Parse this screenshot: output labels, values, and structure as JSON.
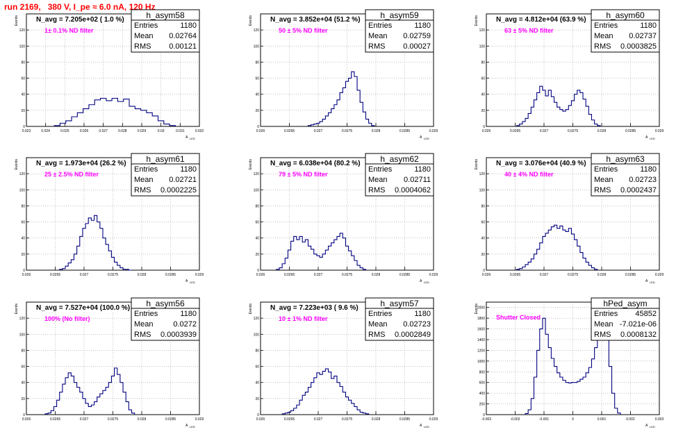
{
  "title": "run 2169,   380 V, I_pe ≈ 6.0 nA, 120 Hz",
  "stat_labels": {
    "entries": "Entries",
    "mean": "Mean",
    "rms": "RMS"
  },
  "y_axis_label": "Events",
  "x_axis_label": "A",
  "x_axis_sub": "LED",
  "colors": {
    "histogram": "#000080",
    "magenta": "#ff00ff",
    "grid": "#999999"
  },
  "chart_data": [
    {
      "type": "bar",
      "name": "h_asym58",
      "n_avg": "N_avg = 7.205e+02 ( 1.0 %)",
      "filter": "1± 0.1% ND filter",
      "entries": "1180",
      "mean": "0.02764",
      "rms": "0.00121",
      "xlim": [
        0.023,
        0.032
      ],
      "ylim": [
        0,
        140
      ],
      "xticks": [
        "0.023",
        "0.024",
        "0.025",
        "0.026",
        "0.027",
        "0.028",
        "0.029",
        "0.03",
        "0.031",
        "0.032"
      ],
      "xtick_values": [
        0.023,
        0.024,
        0.025,
        0.026,
        0.027,
        0.028,
        0.029,
        0.03,
        0.031,
        0.032
      ],
      "yticks": [
        "0",
        "20",
        "40",
        "60",
        "80",
        "100",
        "120"
      ],
      "ytick_values": [
        0,
        20,
        40,
        60,
        80,
        100,
        120
      ],
      "x": [
        0.0246,
        0.0249,
        0.0252,
        0.0255,
        0.0258,
        0.0261,
        0.0264,
        0.0267,
        0.027,
        0.0273,
        0.0276,
        0.0279,
        0.0282,
        0.0285,
        0.0288,
        0.0291,
        0.0294,
        0.0297,
        0.03,
        0.0303,
        0.0306
      ],
      "values": [
        1,
        4,
        7,
        12,
        17,
        22,
        27,
        33,
        35,
        32,
        35,
        31,
        34,
        25,
        22,
        20,
        17,
        13,
        7,
        3,
        1
      ]
    },
    {
      "type": "bar",
      "name": "h_asym59",
      "n_avg": "N_avg = 3.852e+04 (51.2 %)",
      "filter": "50 ± 5% ND filter",
      "entries": "1180",
      "mean": "0.02759",
      "rms": "0.00027",
      "xlim": [
        0.026,
        0.029
      ],
      "ylim": [
        0,
        140
      ],
      "xticks": [
        "0.026",
        "0.0265",
        "0.027",
        "0.0275",
        "0.028",
        "0.0285",
        "0.029"
      ],
      "xtick_values": [
        0.026,
        0.0265,
        0.027,
        0.0275,
        0.028,
        0.0285,
        0.029
      ],
      "yticks": [
        "0",
        "20",
        "40",
        "60",
        "80",
        "100",
        "120"
      ],
      "ytick_values": [
        0,
        20,
        40,
        60,
        80,
        100,
        120
      ],
      "x": [
        0.02685,
        0.0269,
        0.02695,
        0.027,
        0.02705,
        0.0271,
        0.02715,
        0.0272,
        0.02725,
        0.0273,
        0.02735,
        0.0274,
        0.02745,
        0.0275,
        0.02755,
        0.0276,
        0.02765,
        0.0277,
        0.02775,
        0.0278,
        0.02785,
        0.0279,
        0.02795
      ],
      "values": [
        1,
        2,
        3,
        4,
        6,
        9,
        13,
        17,
        22,
        27,
        33,
        42,
        48,
        56,
        60,
        68,
        62,
        45,
        30,
        18,
        9,
        4,
        1
      ]
    },
    {
      "type": "bar",
      "name": "h_asym60",
      "n_avg": "N_avg = 4.812e+04 (63.9 %)",
      "filter": "63 ± 5% ND filter",
      "entries": "1180",
      "mean": "0.02737",
      "rms": "0.0003825",
      "xlim": [
        0.026,
        0.029
      ],
      "ylim": [
        0,
        140
      ],
      "xticks": [
        "0.026",
        "0.0265",
        "0.027",
        "0.0275",
        "0.028",
        "0.0285",
        "0.029"
      ],
      "xtick_values": [
        0.026,
        0.0265,
        0.027,
        0.0275,
        0.028,
        0.0285,
        0.029
      ],
      "yticks": [
        "0",
        "20",
        "40",
        "60",
        "80",
        "100",
        "120"
      ],
      "ytick_values": [
        0,
        20,
        40,
        60,
        80,
        100,
        120
      ],
      "x": [
        0.02655,
        0.0266,
        0.02665,
        0.0267,
        0.02675,
        0.0268,
        0.02685,
        0.0269,
        0.02695,
        0.027,
        0.02705,
        0.0271,
        0.02715,
        0.0272,
        0.02725,
        0.0273,
        0.02735,
        0.0274,
        0.02745,
        0.0275,
        0.02755,
        0.0276,
        0.02765,
        0.0277,
        0.02775,
        0.0278,
        0.02785,
        0.0279,
        0.02795
      ],
      "values": [
        1,
        3,
        6,
        10,
        16,
        24,
        33,
        42,
        50,
        45,
        38,
        45,
        37,
        30,
        24,
        21,
        19,
        21,
        26,
        32,
        40,
        45,
        42,
        34,
        25,
        15,
        8,
        3,
        1
      ]
    },
    {
      "type": "bar",
      "name": "h_asym61",
      "n_avg": "N_avg = 1.973e+04 (26.2 %)",
      "filter": "25 ± 2.5% ND filter",
      "entries": "1180",
      "mean": "0.02721",
      "rms": "0.0002225",
      "xlim": [
        0.026,
        0.029
      ],
      "ylim": [
        0,
        140
      ],
      "xticks": [
        "0.026",
        "0.0265",
        "0.027",
        "0.0275",
        "0.028",
        "0.0285",
        "0.029"
      ],
      "xtick_values": [
        0.026,
        0.0265,
        0.027,
        0.0275,
        0.028,
        0.0285,
        0.029
      ],
      "yticks": [
        "0",
        "20",
        "40",
        "60",
        "80",
        "100",
        "120"
      ],
      "ytick_values": [
        0,
        20,
        40,
        60,
        80,
        100,
        120
      ],
      "x": [
        0.0266,
        0.02665,
        0.0267,
        0.02675,
        0.0268,
        0.02685,
        0.0269,
        0.02695,
        0.027,
        0.02705,
        0.0271,
        0.02715,
        0.0272,
        0.02725,
        0.0273,
        0.02735,
        0.0274,
        0.02745,
        0.0275,
        0.02755,
        0.0276,
        0.02765,
        0.0277,
        0.02775,
        0.0278
      ],
      "values": [
        1,
        2,
        5,
        9,
        13,
        20,
        30,
        42,
        52,
        58,
        65,
        62,
        68,
        60,
        52,
        40,
        32,
        24,
        16,
        10,
        6,
        3,
        1,
        1,
        0
      ]
    },
    {
      "type": "bar",
      "name": "h_asym62",
      "n_avg": "N_avg = 6.038e+04 (80.2 %)",
      "filter": "79 ± 5% ND filter",
      "entries": "1180",
      "mean": "0.02711",
      "rms": "0.0004062",
      "xlim": [
        0.026,
        0.029
      ],
      "ylim": [
        0,
        140
      ],
      "xticks": [
        "0.026",
        "0.0265",
        "0.027",
        "0.0275",
        "0.028",
        "0.0285",
        "0.029"
      ],
      "xtick_values": [
        0.026,
        0.0265,
        0.027,
        0.0275,
        0.028,
        0.0285,
        0.029
      ],
      "yticks": [
        "0",
        "20",
        "40",
        "60",
        "80",
        "100",
        "120"
      ],
      "ytick_values": [
        0,
        20,
        40,
        60,
        80,
        100,
        120
      ],
      "x": [
        0.0263,
        0.02635,
        0.0264,
        0.02645,
        0.0265,
        0.02655,
        0.0266,
        0.02665,
        0.0267,
        0.02675,
        0.0268,
        0.02685,
        0.0269,
        0.02695,
        0.027,
        0.02705,
        0.0271,
        0.02715,
        0.0272,
        0.02725,
        0.0273,
        0.02735,
        0.0274,
        0.02745,
        0.0275,
        0.02755,
        0.0276,
        0.02765,
        0.0277,
        0.02775,
        0.0278
      ],
      "values": [
        1,
        3,
        8,
        15,
        25,
        36,
        42,
        38,
        42,
        35,
        38,
        30,
        26,
        20,
        18,
        16,
        20,
        25,
        30,
        34,
        38,
        42,
        46,
        40,
        30,
        24,
        18,
        12,
        6,
        3,
        1
      ]
    },
    {
      "type": "bar",
      "name": "h_asym63",
      "n_avg": "N_avg = 3.076e+04 (40.9 %)",
      "filter": "40 ± 4% ND filter",
      "entries": "1180",
      "mean": "0.02723",
      "rms": "0.0002437",
      "xlim": [
        0.026,
        0.029
      ],
      "ylim": [
        0,
        140
      ],
      "xticks": [
        "0.026",
        "0.0265",
        "0.027",
        "0.0275",
        "0.028",
        "0.0285",
        "0.029"
      ],
      "xtick_values": [
        0.026,
        0.0265,
        0.027,
        0.0275,
        0.028,
        0.0285,
        0.029
      ],
      "yticks": [
        "0",
        "20",
        "40",
        "60",
        "80",
        "100",
        "120"
      ],
      "ytick_values": [
        0,
        20,
        40,
        60,
        80,
        100,
        120
      ],
      "x": [
        0.02655,
        0.0266,
        0.02665,
        0.0267,
        0.02675,
        0.0268,
        0.02685,
        0.0269,
        0.02695,
        0.027,
        0.02705,
        0.0271,
        0.02715,
        0.0272,
        0.02725,
        0.0273,
        0.02735,
        0.0274,
        0.02745,
        0.0275,
        0.02755,
        0.0276,
        0.02765,
        0.0277,
        0.02775,
        0.0278,
        0.02785,
        0.0279
      ],
      "values": [
        1,
        2,
        4,
        7,
        10,
        14,
        20,
        26,
        34,
        42,
        46,
        50,
        54,
        56,
        52,
        55,
        50,
        48,
        52,
        45,
        38,
        30,
        22,
        15,
        10,
        6,
        3,
        1
      ]
    },
    {
      "type": "bar",
      "name": "h_asym56",
      "n_avg": "N_avg = 7.527e+04 (100.0 %)",
      "filter": "100% (No filter)",
      "entries": "1180",
      "mean": "0.0272",
      "rms": "0.0003939",
      "xlim": [
        0.026,
        0.029
      ],
      "ylim": [
        0,
        140
      ],
      "xticks": [
        "0.026",
        "0.0265",
        "0.027",
        "0.0275",
        "0.028",
        "0.0285",
        "0.029"
      ],
      "xtick_values": [
        0.026,
        0.0265,
        0.027,
        0.0275,
        0.028,
        0.0285,
        0.029
      ],
      "yticks": [
        "0",
        "20",
        "40",
        "60",
        "80",
        "100",
        "120"
      ],
      "ytick_values": [
        0,
        20,
        40,
        60,
        80,
        100,
        120
      ],
      "x": [
        0.02635,
        0.0264,
        0.02645,
        0.0265,
        0.02655,
        0.0266,
        0.02665,
        0.0267,
        0.02675,
        0.0268,
        0.02685,
        0.0269,
        0.02695,
        0.027,
        0.02705,
        0.0271,
        0.02715,
        0.0272,
        0.02725,
        0.0273,
        0.02735,
        0.0274,
        0.02745,
        0.0275,
        0.02755,
        0.0276,
        0.02765,
        0.0277,
        0.02775,
        0.0278,
        0.02785
      ],
      "values": [
        1,
        2,
        5,
        10,
        18,
        28,
        38,
        46,
        52,
        48,
        40,
        34,
        28,
        20,
        14,
        10,
        12,
        16,
        22,
        26,
        30,
        34,
        40,
        48,
        58,
        50,
        40,
        28,
        16,
        6,
        2
      ]
    },
    {
      "type": "bar",
      "name": "h_asym57",
      "n_avg": "N_avg = 7.223e+03 ( 9.6 %)",
      "filter": "10 ± 1% ND filter",
      "entries": "1180",
      "mean": "0.02723",
      "rms": "0.0002849",
      "xlim": [
        0.026,
        0.029
      ],
      "ylim": [
        0,
        140
      ],
      "xticks": [
        "0.026",
        "0.0265",
        "0.027",
        "0.0275",
        "0.028",
        "0.0285",
        "0.029"
      ],
      "xtick_values": [
        0.026,
        0.0265,
        0.027,
        0.0275,
        0.028,
        0.0285,
        0.029
      ],
      "yticks": [
        "0",
        "20",
        "40",
        "60",
        "80",
        "100",
        "120"
      ],
      "ytick_values": [
        0,
        20,
        40,
        60,
        80,
        100,
        120
      ],
      "x": [
        0.0264,
        0.02645,
        0.0265,
        0.02655,
        0.0266,
        0.02665,
        0.0267,
        0.02675,
        0.0268,
        0.02685,
        0.0269,
        0.02695,
        0.027,
        0.02705,
        0.0271,
        0.02715,
        0.0272,
        0.02725,
        0.0273,
        0.02735,
        0.0274,
        0.02745,
        0.0275,
        0.02755,
        0.0276,
        0.02765,
        0.0277,
        0.02775,
        0.0278,
        0.02785
      ],
      "values": [
        1,
        2,
        3,
        5,
        8,
        12,
        18,
        24,
        28,
        34,
        40,
        46,
        52,
        50,
        54,
        57,
        53,
        45,
        48,
        40,
        35,
        28,
        22,
        18,
        14,
        10,
        6,
        3,
        2,
        1
      ]
    },
    {
      "type": "bar",
      "name": "hPed_asym",
      "n_avg": "",
      "filter": "Shutter Closed",
      "entries": "45852",
      "mean": "-7.021e-06",
      "rms": "0.0008132",
      "xlim": [
        -0.003,
        0.003
      ],
      "ylim": [
        0,
        2100
      ],
      "xticks": [
        "-0.003",
        "-0.002",
        "-0.001",
        "0",
        "0.001",
        "0.002",
        "0.003"
      ],
      "xtick_values": [
        -0.003,
        -0.002,
        -0.001,
        0,
        0.001,
        0.002,
        0.003
      ],
      "yticks": [
        "0",
        "200",
        "400",
        "600",
        "800",
        "1000",
        "1200",
        "1400",
        "1600",
        "1800",
        "2000"
      ],
      "ytick_values": [
        0,
        200,
        400,
        600,
        800,
        1000,
        1200,
        1400,
        1600,
        1800,
        2000
      ],
      "x": [
        -0.0016,
        -0.0015,
        -0.0014,
        -0.0013,
        -0.0012,
        -0.0011,
        -0.001,
        -0.0009,
        -0.0008,
        -0.0007,
        -0.0006,
        -0.0005,
        -0.0004,
        -0.0003,
        -0.0002,
        -0.0001,
        0,
        0.0001,
        0.0002,
        0.0003,
        0.0004,
        0.0005,
        0.0006,
        0.0007,
        0.0008,
        0.0009,
        0.001,
        0.0011,
        0.0012,
        0.0013,
        0.0014,
        0.0015,
        0.0016
      ],
      "values": [
        20,
        90,
        300,
        700,
        1200,
        1600,
        1800,
        1500,
        1250,
        1050,
        900,
        780,
        700,
        640,
        600,
        590,
        600,
        600,
        620,
        660,
        700,
        780,
        880,
        1040,
        1250,
        1500,
        1950,
        1750,
        1400,
        900,
        400,
        120,
        30
      ]
    }
  ]
}
